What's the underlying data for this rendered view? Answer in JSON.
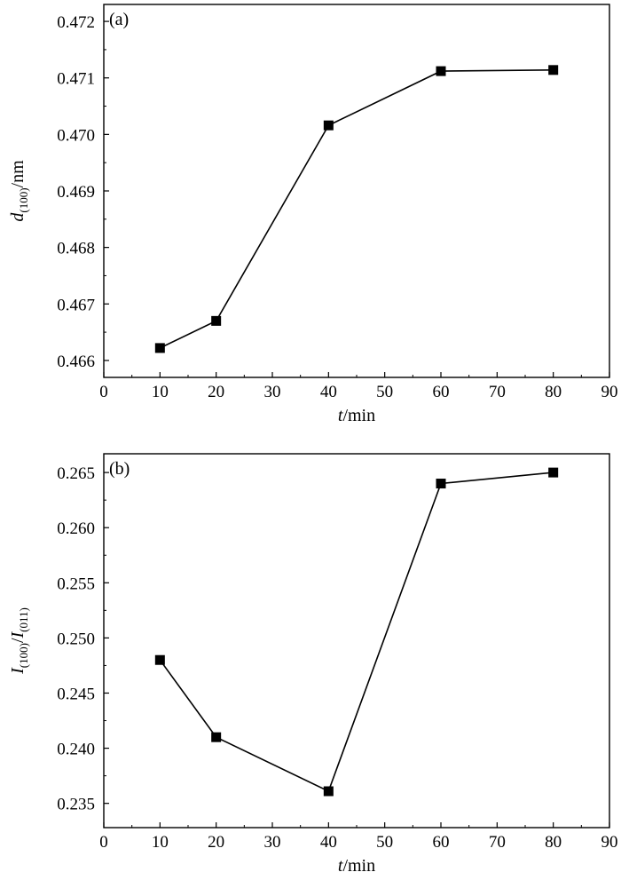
{
  "chart_data": [
    {
      "type": "line",
      "panel_label": "(a)",
      "xlabel": {
        "var": "t",
        "rest": "/min"
      },
      "ylabel": {
        "var": "d",
        "sub": "(100)",
        "rest": "/nm"
      },
      "xlim": [
        0,
        90
      ],
      "ylim": [
        0.4657,
        0.4723
      ],
      "xticks": [
        "0",
        "10",
        "20",
        "30",
        "40",
        "50",
        "60",
        "70",
        "80",
        "90"
      ],
      "yticks": [
        "0.466",
        "0.467",
        "0.468",
        "0.469",
        "0.470",
        "0.471",
        "0.472"
      ],
      "grid": false,
      "marker": "square",
      "series": [
        {
          "x": [
            10,
            20,
            40,
            60,
            80
          ],
          "y": [
            0.46622,
            0.4667,
            0.47016,
            0.47112,
            0.47114
          ]
        }
      ]
    },
    {
      "type": "line",
      "panel_label": "(b)",
      "xlabel": {
        "var": "t",
        "rest": "/min"
      },
      "ylabel": {
        "var": "I",
        "sub": "(100)",
        "rest": "/",
        "var2": "I",
        "sub2": "(011)"
      },
      "xlim": [
        0,
        90
      ],
      "ylim": [
        0.2328,
        0.2667
      ],
      "xticks": [
        "0",
        "10",
        "20",
        "30",
        "40",
        "50",
        "60",
        "70",
        "80",
        "90"
      ],
      "yticks": [
        "0.235",
        "0.240",
        "0.245",
        "0.250",
        "0.255",
        "0.260",
        "0.265"
      ],
      "grid": false,
      "marker": "square",
      "series": [
        {
          "x": [
            10,
            20,
            40,
            60,
            80
          ],
          "y": [
            0.248,
            0.241,
            0.2361,
            0.264,
            0.265
          ]
        }
      ]
    }
  ]
}
